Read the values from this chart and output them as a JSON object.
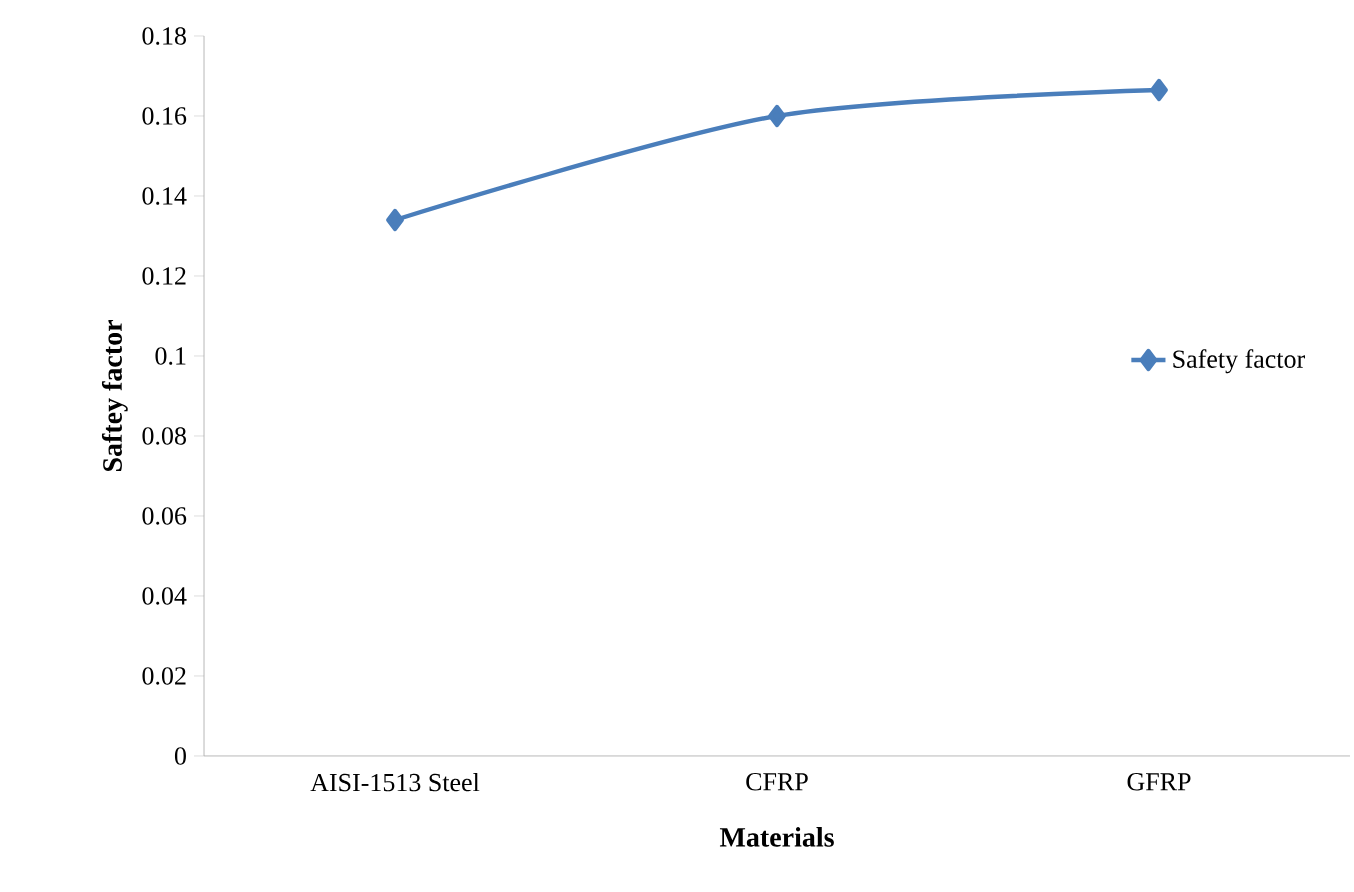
{
  "chart_data": {
    "type": "line",
    "xlabel": "Materials",
    "ylabel": "Saftey factor",
    "categories": [
      "AISI-1513 Steel",
      "CFRP",
      "GFRP"
    ],
    "series": [
      {
        "name": "Safety factor",
        "color": "#4a7ebb",
        "values": [
          0.134,
          0.16,
          0.1665
        ]
      }
    ],
    "ylim": [
      0,
      0.18
    ],
    "yticks": [
      0,
      0.02,
      0.04,
      0.06,
      0.08,
      0.1,
      0.12,
      0.14,
      0.16,
      0.18
    ],
    "marker": "diamond",
    "line_style": "solid",
    "grid": false,
    "legend": "right"
  }
}
